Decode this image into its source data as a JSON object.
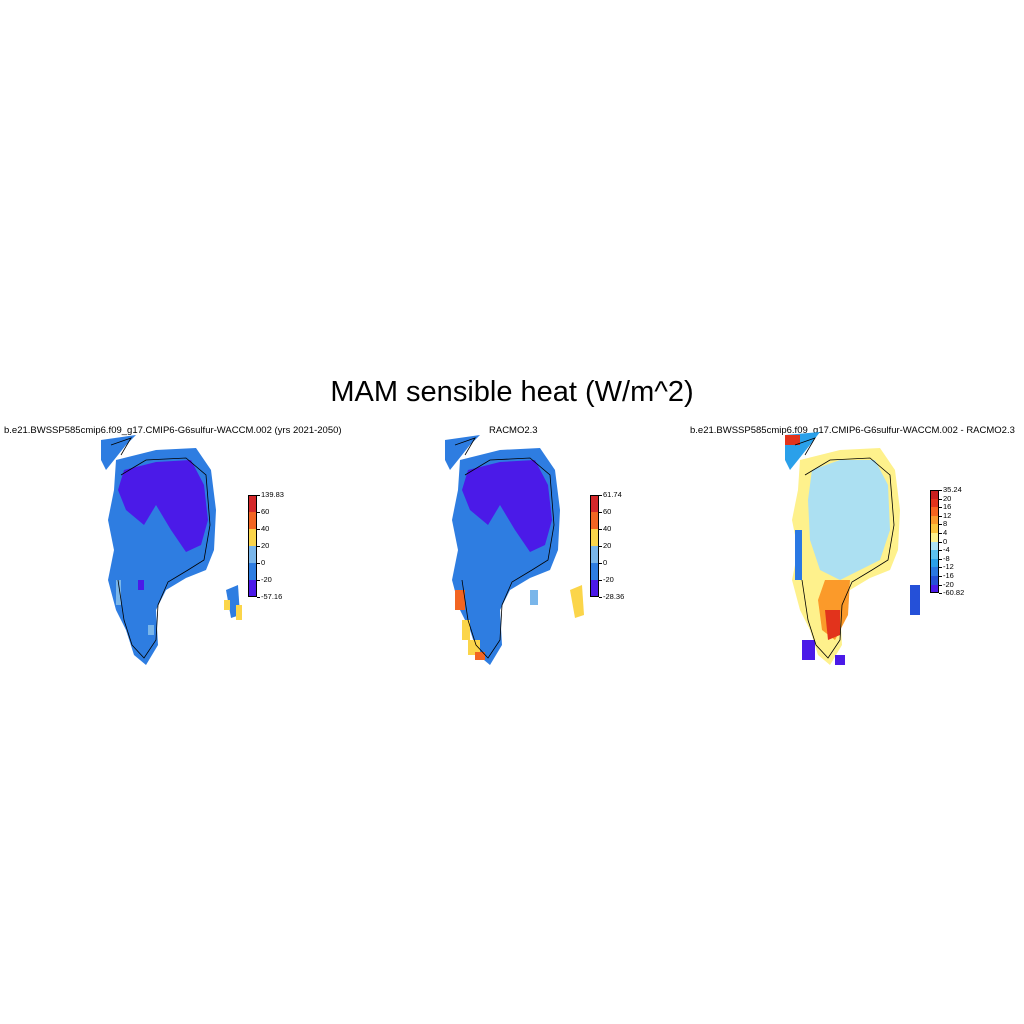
{
  "title": "MAM sensible heat (W/m^2)",
  "panels": [
    {
      "id": "model",
      "title": "b.e21.BWSSP585cmip6.f09_g17.CMIP6-G6sulfur-WACCM.002 (yrs 2021-2050)",
      "legend": {
        "labels": [
          "139.83",
          "60",
          "40",
          "20",
          "0",
          "-20",
          "-57.16"
        ],
        "colors": [
          "#d4282a",
          "#f26522",
          "#fbd54a",
          "#7ab6ea",
          "#2e7de1",
          "#4b1ae8"
        ]
      }
    },
    {
      "id": "racmo",
      "title": "RACMO2.3",
      "legend": {
        "labels": [
          "61.74",
          "60",
          "40",
          "20",
          "0",
          "-20",
          "-28.36"
        ],
        "colors": [
          "#d4282a",
          "#f26522",
          "#fbd54a",
          "#7ab6ea",
          "#2e7de1",
          "#4b1ae8"
        ]
      }
    },
    {
      "id": "diff",
      "title": "b.e21.BWSSP585cmip6.f09_g17.CMIP6-G6sulfur-WACCM.002 - RACMO2.3",
      "legend": {
        "labels": [
          "35.24",
          "20",
          "16",
          "12",
          "8",
          "4",
          "0",
          "-4",
          "-8",
          "-12",
          "-16",
          "-20",
          "-60.82"
        ],
        "colors": [
          "#c8201f",
          "#e2331c",
          "#f7641e",
          "#fb9a2a",
          "#fcc43d",
          "#fef18c",
          "#ace0f2",
          "#5cc0ef",
          "#2aa0ea",
          "#2a78e3",
          "#2550d8",
          "#4b1ae8"
        ]
      }
    }
  ]
}
